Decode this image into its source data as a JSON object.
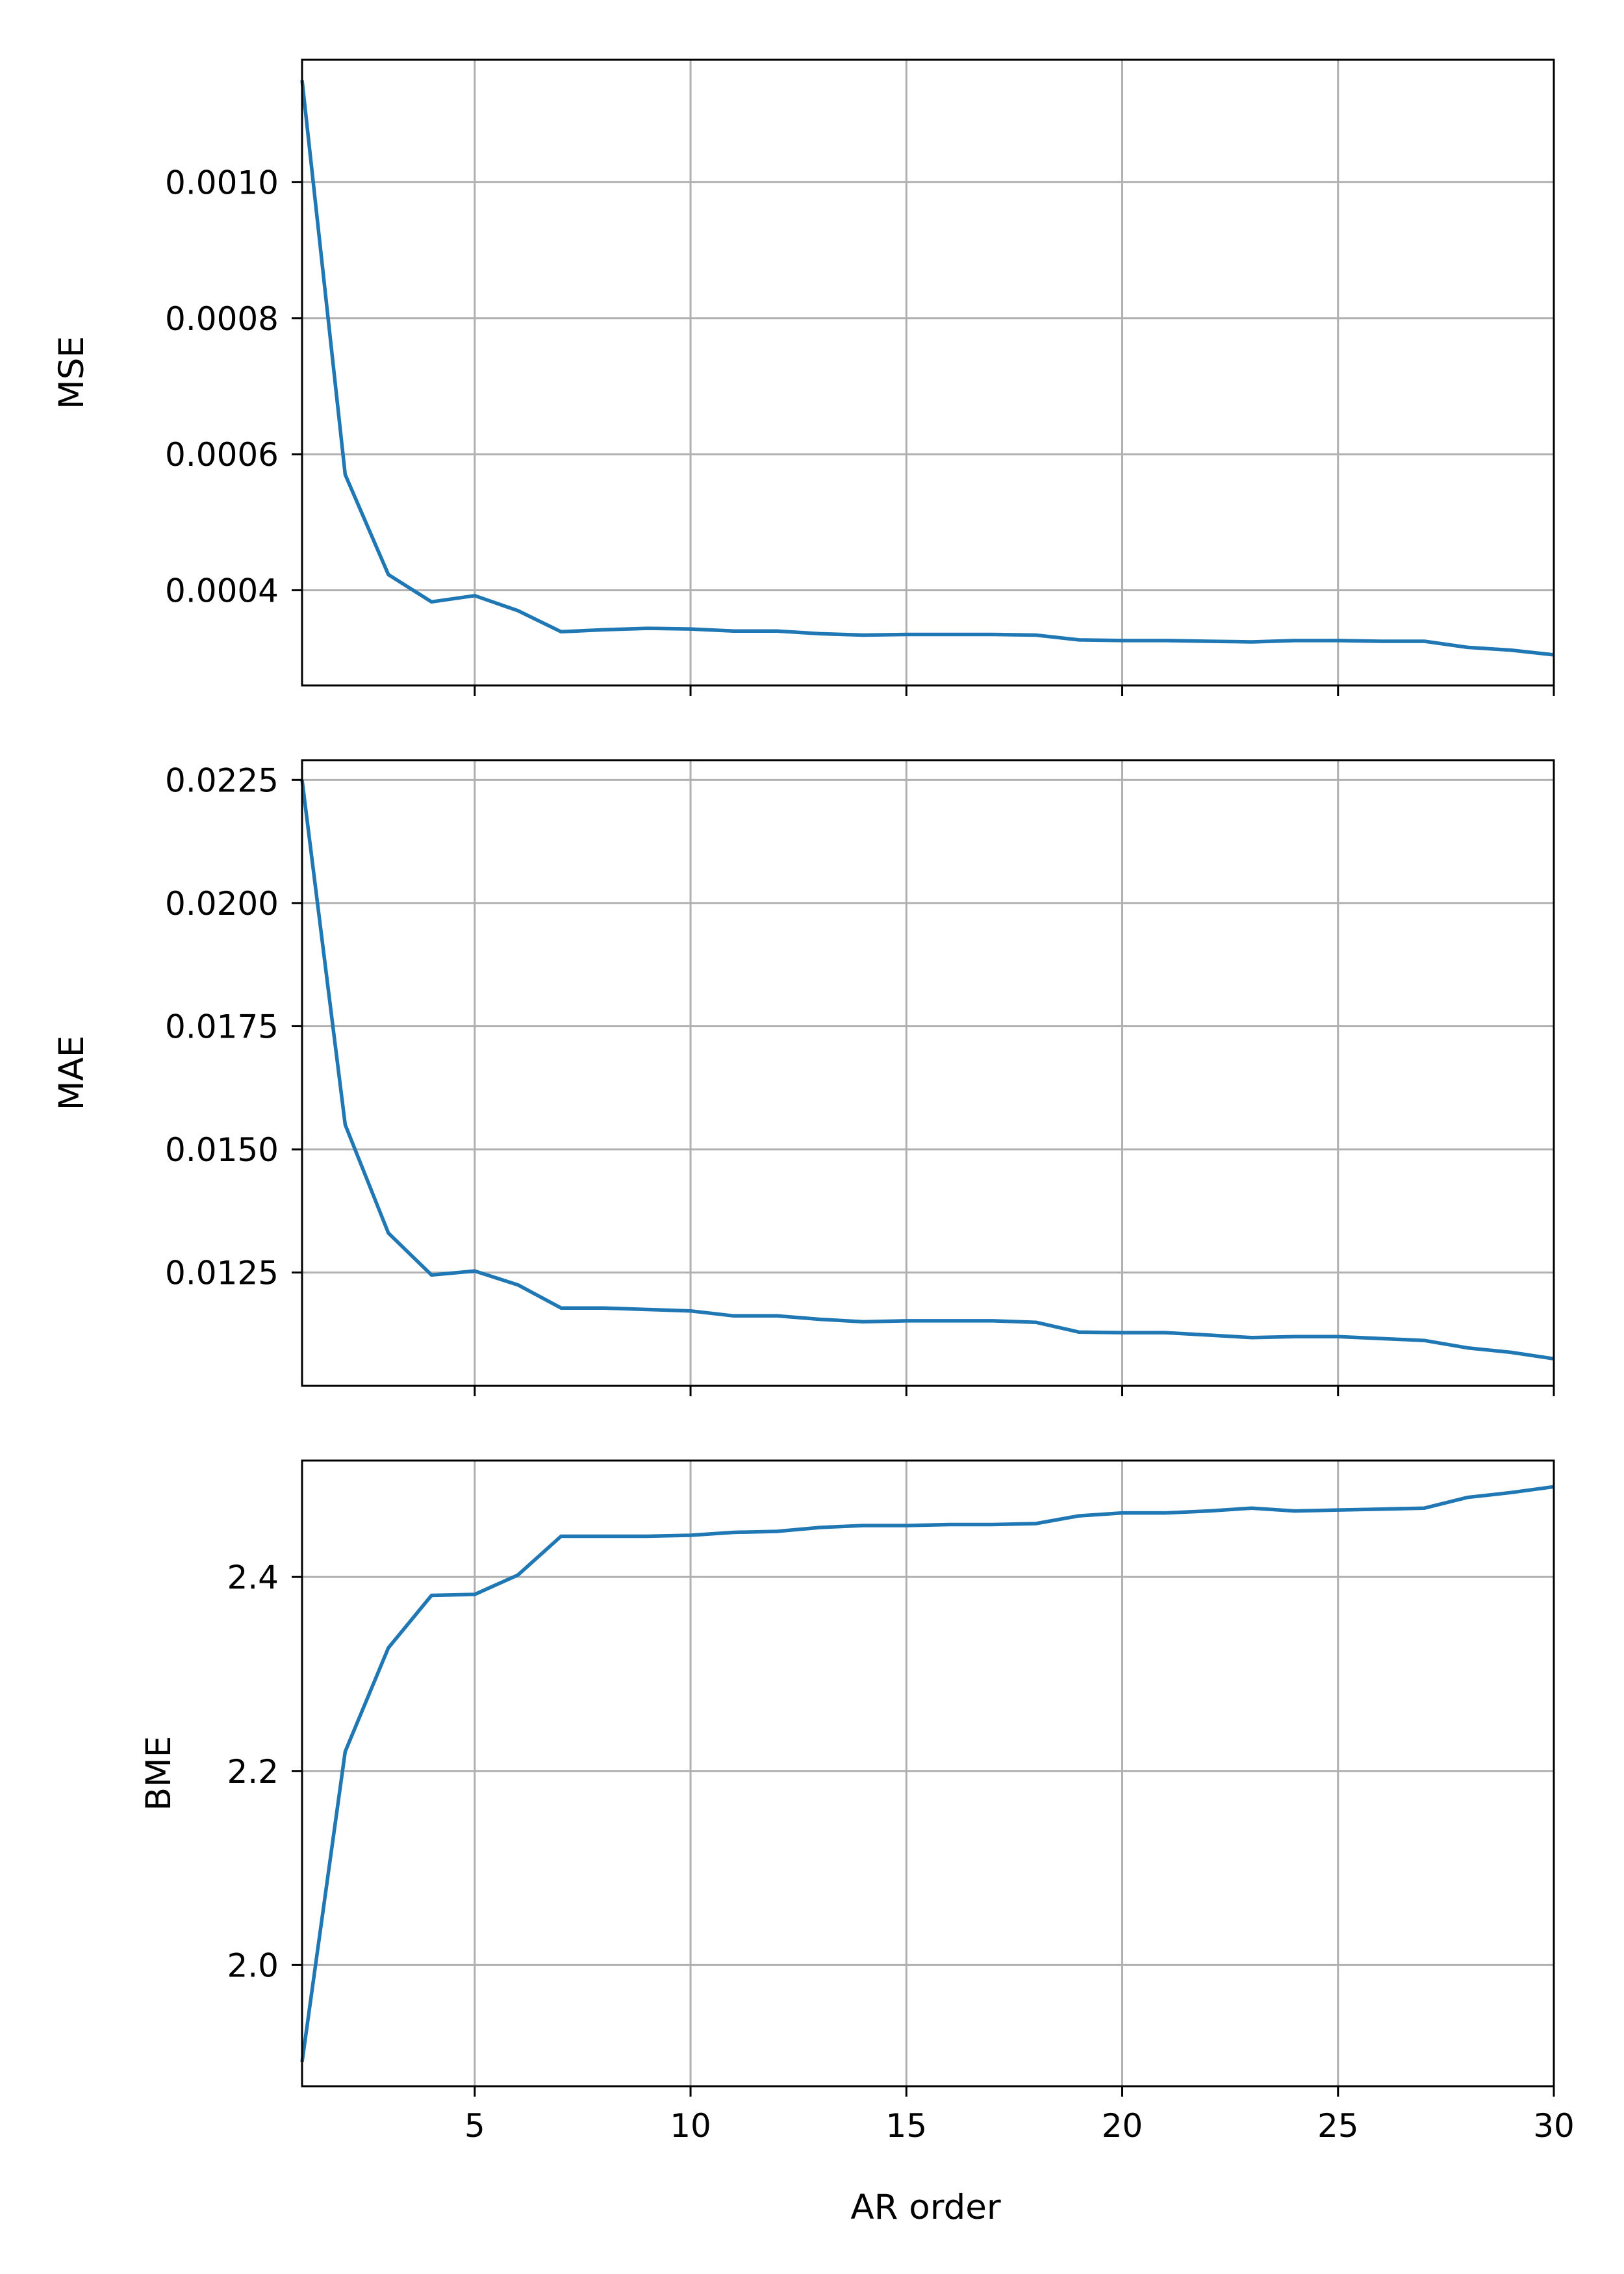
{
  "figure": {
    "xlabel": "AR order",
    "line_color": "#1f77b4",
    "grid_color": "#b0b0b0",
    "frame_color": "#000000"
  },
  "chart_data": [
    {
      "type": "line",
      "ylabel": "MSE",
      "xlim": [
        1,
        30
      ],
      "ylim": [
        0.00026,
        0.00118
      ],
      "grid": true,
      "xticks": [
        5,
        10,
        15,
        20,
        25,
        30
      ],
      "xtick_labels": [
        "",
        "",
        "",
        "",
        "",
        ""
      ],
      "yticks": [
        0.0004,
        0.0006,
        0.0008,
        0.001
      ],
      "ytick_labels": [
        "0.0004",
        "0.0006",
        "0.0008",
        "0.0010"
      ],
      "x": [
        1,
        2,
        3,
        4,
        5,
        6,
        7,
        8,
        9,
        10,
        11,
        12,
        13,
        14,
        15,
        16,
        17,
        18,
        19,
        20,
        21,
        22,
        23,
        24,
        25,
        26,
        27,
        28,
        29,
        30
      ],
      "y": [
        0.00115,
        0.00057,
        0.000423,
        0.000383,
        0.000392,
        0.00037,
        0.000339,
        0.000342,
        0.000344,
        0.000343,
        0.00034,
        0.00034,
        0.000336,
        0.000334,
        0.000335,
        0.000335,
        0.000335,
        0.000334,
        0.000327,
        0.000326,
        0.000326,
        0.000325,
        0.000324,
        0.000326,
        0.000326,
        0.000325,
        0.000325,
        0.000316,
        0.000312,
        0.000305
      ]
    },
    {
      "type": "line",
      "ylabel": "MAE",
      "xlim": [
        1,
        30
      ],
      "ylim": [
        0.0102,
        0.0229
      ],
      "grid": true,
      "xticks": [
        5,
        10,
        15,
        20,
        25,
        30
      ],
      "xtick_labels": [
        "",
        "",
        "",
        "",
        "",
        ""
      ],
      "yticks": [
        0.0125,
        0.015,
        0.0175,
        0.02,
        0.0225
      ],
      "ytick_labels": [
        "0.0125",
        "0.0150",
        "0.0175",
        "0.0200",
        "0.0225"
      ],
      "x": [
        1,
        2,
        3,
        4,
        5,
        6,
        7,
        8,
        9,
        10,
        11,
        12,
        13,
        14,
        15,
        16,
        17,
        18,
        19,
        20,
        21,
        22,
        23,
        24,
        25,
        26,
        27,
        28,
        29,
        30
      ],
      "y": [
        0.0225,
        0.0155,
        0.0133,
        0.01245,
        0.01253,
        0.01225,
        0.01178,
        0.01178,
        0.01175,
        0.01172,
        0.01162,
        0.01162,
        0.01155,
        0.0115,
        0.01152,
        0.01152,
        0.01152,
        0.01149,
        0.01129,
        0.01128,
        0.01128,
        0.01123,
        0.01118,
        0.0112,
        0.0112,
        0.01116,
        0.01112,
        0.01097,
        0.01088,
        0.01075
      ]
    },
    {
      "type": "line",
      "ylabel": "BME",
      "xlim": [
        1,
        30
      ],
      "ylim": [
        1.875,
        2.52
      ],
      "grid": true,
      "xticks": [
        5,
        10,
        15,
        20,
        25,
        30
      ],
      "xtick_labels": [
        "5",
        "10",
        "15",
        "20",
        "25",
        "30"
      ],
      "yticks": [
        2.0,
        2.2,
        2.4
      ],
      "ytick_labels": [
        "2.0",
        "2.2",
        "2.4"
      ],
      "x": [
        1,
        2,
        3,
        4,
        5,
        6,
        7,
        8,
        9,
        10,
        11,
        12,
        13,
        14,
        15,
        16,
        17,
        18,
        19,
        20,
        21,
        22,
        23,
        24,
        25,
        26,
        27,
        28,
        29,
        30
      ],
      "y": [
        1.9,
        2.22,
        2.327,
        2.381,
        2.382,
        2.402,
        2.442,
        2.442,
        2.442,
        2.443,
        2.446,
        2.447,
        2.451,
        2.453,
        2.453,
        2.454,
        2.454,
        2.455,
        2.463,
        2.466,
        2.466,
        2.468,
        2.471,
        2.468,
        2.469,
        2.47,
        2.471,
        2.482,
        2.487,
        2.493
      ]
    }
  ]
}
